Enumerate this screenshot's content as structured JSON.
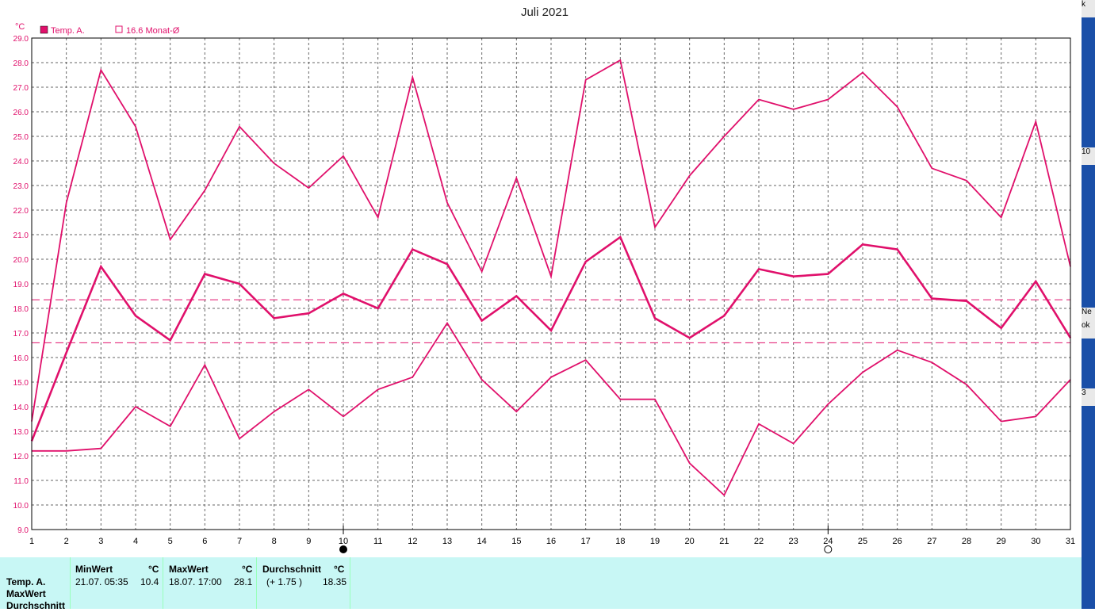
{
  "chart_data": {
    "type": "line",
    "title": "Juli 2021",
    "ylabel": "°C",
    "xlabel": "",
    "ylim": [
      9.0,
      29.0
    ],
    "categories": [
      "1",
      "2",
      "3",
      "4",
      "5",
      "6",
      "7",
      "8",
      "9",
      "10",
      "11",
      "12",
      "13",
      "14",
      "15",
      "16",
      "17",
      "18",
      "19",
      "20",
      "21",
      "22",
      "23",
      "24",
      "25",
      "26",
      "27",
      "28",
      "29",
      "30",
      "31"
    ],
    "yticks": [
      "9.0",
      "10.0",
      "11.0",
      "12.0",
      "13.0",
      "14.0",
      "15.0",
      "16.0",
      "17.0",
      "18.0",
      "19.0",
      "20.0",
      "21.0",
      "22.0",
      "23.0",
      "24.0",
      "25.0",
      "26.0",
      "27.0",
      "28.0",
      "29.0"
    ],
    "grid": true,
    "legend": [
      {
        "label": "Temp. A.",
        "marker": "filled"
      },
      {
        "label": "16.6 Monat-Ø",
        "marker": "empty"
      }
    ],
    "series": [
      {
        "role": "max",
        "values": [
          13.4,
          22.3,
          27.7,
          25.4,
          20.8,
          22.8,
          25.4,
          23.9,
          22.9,
          24.2,
          21.7,
          27.4,
          22.3,
          19.5,
          23.3,
          19.3,
          27.3,
          28.1,
          21.3,
          23.4,
          25.0,
          26.5,
          26.1,
          26.5,
          27.6,
          26.2,
          23.7,
          23.2,
          21.7,
          25.6,
          19.7
        ]
      },
      {
        "role": "mean",
        "values": [
          12.6,
          16.2,
          19.7,
          17.7,
          16.7,
          19.4,
          19.0,
          17.6,
          17.8,
          18.6,
          18.0,
          20.4,
          19.8,
          17.5,
          18.5,
          17.1,
          19.9,
          20.9,
          17.6,
          16.8,
          17.7,
          19.6,
          19.3,
          19.4,
          20.6,
          20.4,
          18.4,
          18.3,
          17.2,
          19.1,
          16.8
        ]
      },
      {
        "role": "min",
        "values": [
          12.2,
          12.2,
          12.3,
          14.0,
          13.2,
          15.7,
          12.7,
          13.8,
          14.7,
          13.6,
          14.7,
          15.2,
          17.4,
          15.1,
          13.8,
          15.2,
          15.9,
          14.3,
          14.3,
          11.7,
          10.4,
          13.3,
          12.5,
          14.1,
          15.4,
          16.3,
          15.8,
          14.9,
          13.4,
          13.6,
          15.1
        ]
      }
    ],
    "reference_lines": [
      18.35,
      16.6
    ],
    "moon_phases": [
      {
        "day": "10",
        "phase": "new-moon"
      },
      {
        "day": "24",
        "phase": "full-moon"
      }
    ],
    "colors": {
      "series": "#e0106b",
      "grid": "#666666"
    }
  },
  "stats": {
    "row_labels": [
      "Temp. A.",
      "MaxWert",
      "Durchschnitt"
    ],
    "min": {
      "header": "MinWert",
      "unit": "°C",
      "when": "21.07.  05:35",
      "value": "10.4"
    },
    "max": {
      "header": "MaxWert",
      "unit": "°C",
      "when": "18.07.  17:00",
      "value": "28.1"
    },
    "avg": {
      "header": "Durchschnitt",
      "unit": "°C",
      "delta": "(+ 1.75 )",
      "value": "18.35"
    }
  },
  "right_edge": {
    "fragments": [
      "k",
      "10",
      "Ne",
      "ok",
      "3"
    ]
  }
}
